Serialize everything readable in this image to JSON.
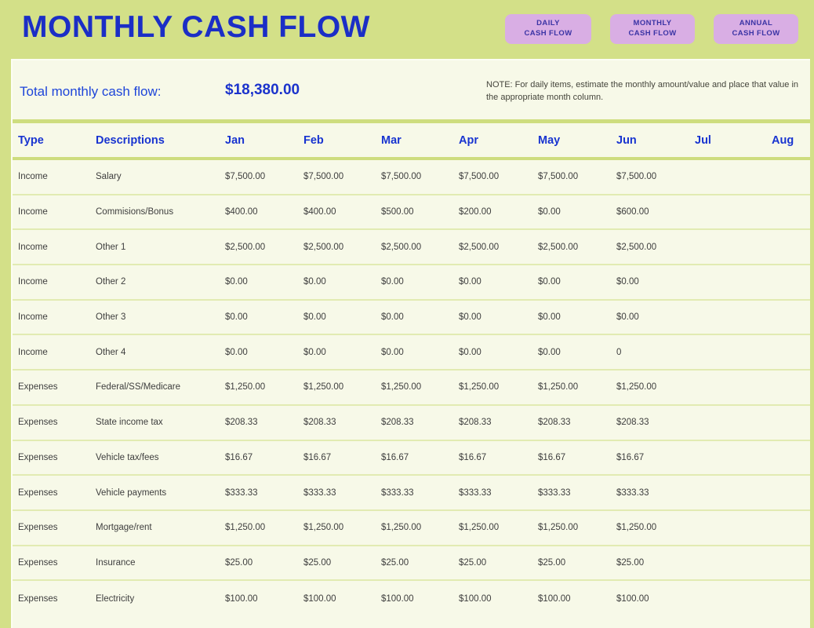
{
  "header": {
    "title": "MONTHLY CASH FLOW",
    "nav_buttons": [
      {
        "line1": "DAILY",
        "line2": "CASH FLOW"
      },
      {
        "line1": "MONTHLY",
        "line2": "CASH FLOW"
      },
      {
        "line1": "ANNUAL",
        "line2": "CASH FLOW"
      }
    ]
  },
  "summary": {
    "total_label": "Total monthly cash flow:",
    "total_value": "$18,380.00",
    "note_line1": "NOTE: For daily items, estimate the monthly amount/value and place that value in",
    "note_line2": "the appropriate month column."
  },
  "table": {
    "columns": [
      "Type",
      "Descriptions",
      "Jan",
      "Feb",
      "Mar",
      "Apr",
      "May",
      "Jun",
      "Jul",
      "Aug"
    ],
    "rows": [
      {
        "type": "Income",
        "description": "Salary",
        "values": [
          "$7,500.00",
          "$7,500.00",
          "$7,500.00",
          "$7,500.00",
          "$7,500.00",
          "$7,500.00",
          "",
          ""
        ]
      },
      {
        "type": "Income",
        "description": "Commisions/Bonus",
        "values": [
          "$400.00",
          "$400.00",
          "$500.00",
          "$200.00",
          "$0.00",
          "$600.00",
          "",
          ""
        ]
      },
      {
        "type": "Income",
        "description": "Other 1",
        "values": [
          "$2,500.00",
          "$2,500.00",
          "$2,500.00",
          "$2,500.00",
          "$2,500.00",
          "$2,500.00",
          "",
          ""
        ]
      },
      {
        "type": "Income",
        "description": "Other 2",
        "values": [
          "$0.00",
          "$0.00",
          "$0.00",
          "$0.00",
          "$0.00",
          "$0.00",
          "",
          ""
        ]
      },
      {
        "type": "Income",
        "description": "Other 3",
        "values": [
          "$0.00",
          "$0.00",
          "$0.00",
          "$0.00",
          "$0.00",
          "$0.00",
          "",
          ""
        ]
      },
      {
        "type": "Income",
        "description": "Other 4",
        "values": [
          "$0.00",
          "$0.00",
          "$0.00",
          "$0.00",
          "$0.00",
          "0",
          "",
          ""
        ]
      },
      {
        "type": "Expenses",
        "description": "Federal/SS/Medicare",
        "values": [
          "$1,250.00",
          "$1,250.00",
          "$1,250.00",
          "$1,250.00",
          "$1,250.00",
          "$1,250.00",
          "",
          ""
        ]
      },
      {
        "type": "Expenses",
        "description": "State income tax",
        "values": [
          "$208.33",
          "$208.33",
          "$208.33",
          "$208.33",
          "$208.33",
          "$208.33",
          "",
          ""
        ]
      },
      {
        "type": "Expenses",
        "description": "Vehicle tax/fees",
        "values": [
          "$16.67",
          "$16.67",
          "$16.67",
          "$16.67",
          "$16.67",
          "$16.67",
          "",
          ""
        ]
      },
      {
        "type": "Expenses",
        "description": "Vehicle payments",
        "values": [
          "$333.33",
          "$333.33",
          "$333.33",
          "$333.33",
          "$333.33",
          "$333.33",
          "",
          ""
        ]
      },
      {
        "type": "Expenses",
        "description": "Mortgage/rent",
        "values": [
          "$1,250.00",
          "$1,250.00",
          "$1,250.00",
          "$1,250.00",
          "$1,250.00",
          "$1,250.00",
          "",
          ""
        ]
      },
      {
        "type": "Expenses",
        "description": "Insurance",
        "values": [
          "$25.00",
          "$25.00",
          "$25.00",
          "$25.00",
          "$25.00",
          "$25.00",
          "",
          ""
        ]
      },
      {
        "type": "Expenses",
        "description": "Electricity",
        "values": [
          "$100.00",
          "$100.00",
          "$100.00",
          "$100.00",
          "$100.00",
          "$100.00",
          "",
          ""
        ]
      }
    ]
  },
  "colors": {
    "band_green": "#d3e088",
    "separator_green": "#cedd7e",
    "row_line_green": "#e2ebb2",
    "body_cream": "#f7f9e8",
    "title_blue": "#1b2ec6",
    "header_blue": "#1834d0",
    "total_blue": "#1e45d9",
    "button_purple": "#d9aee4",
    "button_text_indigo": "#3b34a5",
    "data_gray": "#3e3e3e"
  }
}
